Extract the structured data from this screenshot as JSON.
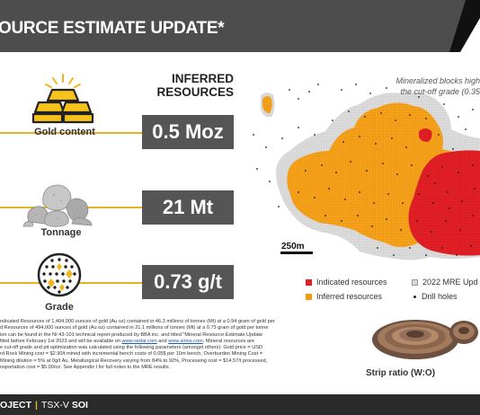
{
  "header": {
    "title": "OURCE ESTIMATE UPDATE*"
  },
  "inferred": {
    "title_line1": "INFERRED",
    "title_line2": "RESOURCES"
  },
  "stats": [
    {
      "label": "Gold content",
      "value": "0.5 Moz",
      "icon": "gold-bars-icon"
    },
    {
      "label": "Tonnage",
      "value": "21 Mt",
      "icon": "rock-pile-icon"
    },
    {
      "label": "Grade",
      "value": "0.73 g/t",
      "icon": "ore-grade-icon"
    }
  ],
  "map": {
    "caption_line1": "Mineralized blocks high",
    "caption_line2": "the cut-off grade (0.35",
    "scale_label": "250m",
    "legend": [
      {
        "label": "Indicated resources",
        "color": "#e31e24"
      },
      {
        "label": "Inferred resources",
        "color": "#f39c12"
      },
      {
        "label": "2022 MRE Upd",
        "color": "#d9d9d9"
      },
      {
        "label": "Drill holes",
        "color": "#222222"
      }
    ]
  },
  "footnote": {
    "line1": "ndicated Resources of 1,404,000 ounces of gold (Au oz) contained in 46.3 millions of tonnes (Mt) at a 0.94 gram of gold per",
    "line2": "d Resources of 494,000 ounces of gold (Au oz) contained in 21.1 millions of tonnes (Mt) at a 0.73 gram of gold per tonne",
    "line3": "ion can be found in the NI 43-101 technical report produced by BBA inc. and titled \"Mineral Resource Estimate Update",
    "line4_pre": "filed before February 1st 2023 and will be available on ",
    "link1": "www.sedar.com",
    "line4_mid": " and ",
    "link2": "www.sirios.com",
    "line4_post": ". Mineral resources are",
    "line5": "e cut-off grade and pit optimization was calculated using the following parameters (amongst others): Gold price = USD",
    "line6": "rd Rock Mining cost = $2.90/t mined with incremental bench costs of 0.05$ per 10m bench, Overburden Mining Cost =",
    "line7": "Mining dilution = 5% at 0g/t Au, Metallurgical Recovery varying from 84% to 92%, Processing cost = $14.57/t processed,",
    "line8": "nsportation cost = $5.00/oz. See Appendix I for full notes to the MRE results."
  },
  "strip": {
    "label": "Strip ratio (W:O)"
  },
  "bottom": {
    "project": "OJECT",
    "exchange": "TSX-V",
    "ticker": "SOI"
  }
}
